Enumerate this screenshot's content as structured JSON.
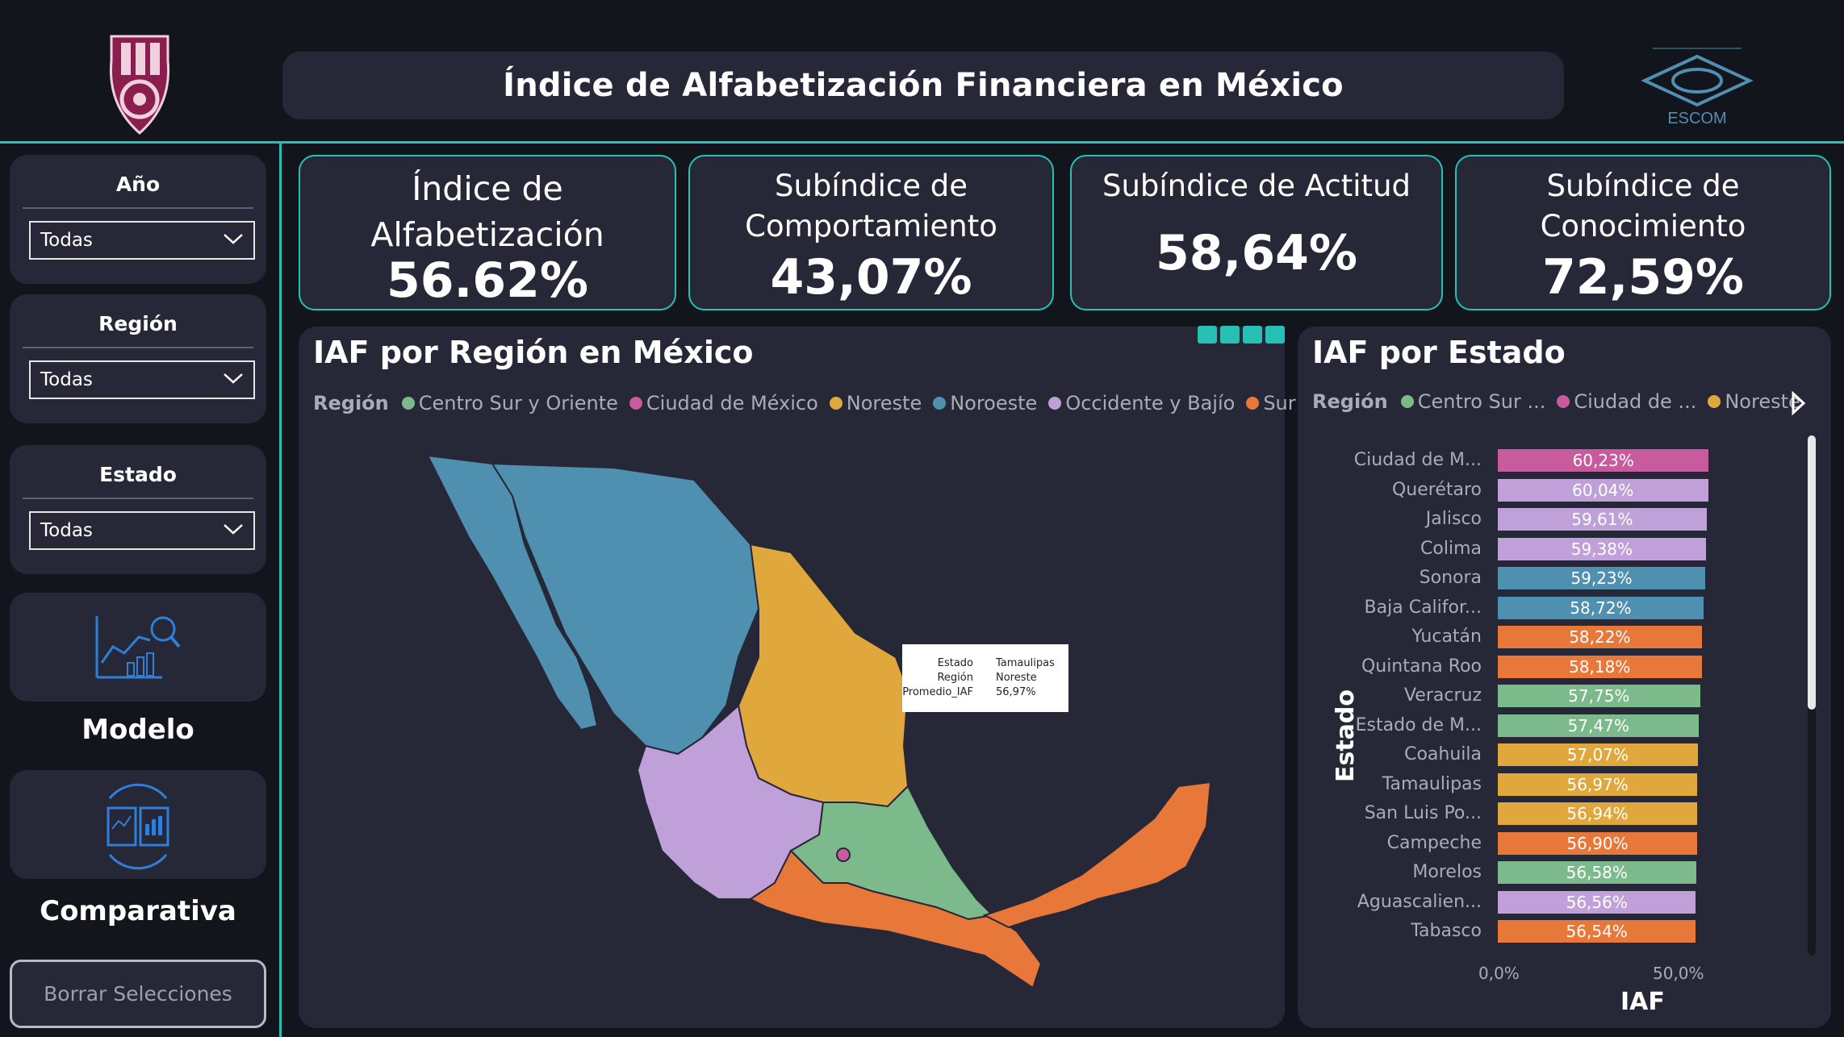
{
  "header": {
    "title": "Índice de Alfabetización Financiera en México",
    "logo_left": "IPN",
    "logo_right": "ESCOM"
  },
  "filters": [
    {
      "title": "Año",
      "value": "Todas"
    },
    {
      "title": "Región",
      "value": "Todas"
    },
    {
      "title": "Estado",
      "value": "Todas"
    }
  ],
  "nav": {
    "modelo": "Modelo",
    "comparativa": "Comparativa",
    "clear": "Borrar Selecciones"
  },
  "kpis": [
    {
      "label1": "Índice de",
      "label2": "Alfabetización",
      "value": "56.62%"
    },
    {
      "label1": "Subíndice de",
      "label2": "Comportamiento",
      "value": "43,07%"
    },
    {
      "label1": "Subíndice de Actitud",
      "label2": "",
      "value": "58,64%"
    },
    {
      "label1": "Subíndice de",
      "label2": "Conocimiento",
      "value": "72,59%"
    }
  ],
  "map_panel": {
    "title": "IAF por Región en México",
    "legend_title": "Región",
    "legend": [
      {
        "name": "Centro Sur y Oriente",
        "color": "#7cba8c"
      },
      {
        "name": "Ciudad de México",
        "color": "#c85a9e"
      },
      {
        "name": "Noreste",
        "color": "#e0a83c"
      },
      {
        "name": "Noroeste",
        "color": "#4f8fb0"
      },
      {
        "name": "Occidente y Bajío",
        "color": "#c0a0d8"
      },
      {
        "name": "Sur",
        "color": "#e8783a"
      }
    ],
    "tooltip": [
      {
        "key": "Estado",
        "value": "Tamaulipas"
      },
      {
        "key": "Región",
        "value": "Noreste"
      },
      {
        "key": "Promedio_IAF",
        "value": "56,97%"
      }
    ]
  },
  "bar_panel": {
    "title": "IAF por Estado",
    "legend_title": "Región",
    "legend": [
      {
        "name": "Centro Sur ...",
        "color": "#7cba8c"
      },
      {
        "name": "Ciudad de ...",
        "color": "#c85a9e"
      },
      {
        "name": "Noreste",
        "color": "#e0a83c"
      }
    ],
    "y_title": "Estado",
    "x_title": "IAF",
    "x_ticks": [
      "0,0%",
      "50,0%"
    ]
  },
  "chart_data": {
    "type": "bar",
    "orientation": "horizontal",
    "title": "IAF por Estado",
    "xlabel": "IAF",
    "ylabel": "Estado",
    "xlim": [
      0,
      0.6023
    ],
    "categories": [
      "Ciudad de M...",
      "Querétaro",
      "Jalisco",
      "Colima",
      "Sonora",
      "Baja Califor...",
      "Yucatán",
      "Quintana Roo",
      "Veracruz",
      "Estado de M...",
      "Coahuila",
      "Tamaulipas",
      "San Luis Po...",
      "Campeche",
      "Morelos",
      "Aguascalien...",
      "Tabasco"
    ],
    "values": [
      60.23,
      60.04,
      59.61,
      59.38,
      59.23,
      58.72,
      58.22,
      58.18,
      57.75,
      57.47,
      57.07,
      56.97,
      56.94,
      56.9,
      56.58,
      56.56,
      56.54
    ],
    "value_labels": [
      "60,23%",
      "60,04%",
      "59,61%",
      "59,38%",
      "59,23%",
      "58,72%",
      "58,22%",
      "58,18%",
      "57,75%",
      "57,47%",
      "57,07%",
      "56,97%",
      "56,94%",
      "56,90%",
      "56,58%",
      "56,56%",
      "56,54%"
    ],
    "colors": [
      "#c85a9e",
      "#c0a0d8",
      "#c0a0d8",
      "#c0a0d8",
      "#4f8fb0",
      "#4f8fb0",
      "#e8783a",
      "#e8783a",
      "#7cba8c",
      "#7cba8c",
      "#e0a83c",
      "#e0a83c",
      "#e0a83c",
      "#e8783a",
      "#7cba8c",
      "#c0a0d8",
      "#e8783a"
    ]
  }
}
